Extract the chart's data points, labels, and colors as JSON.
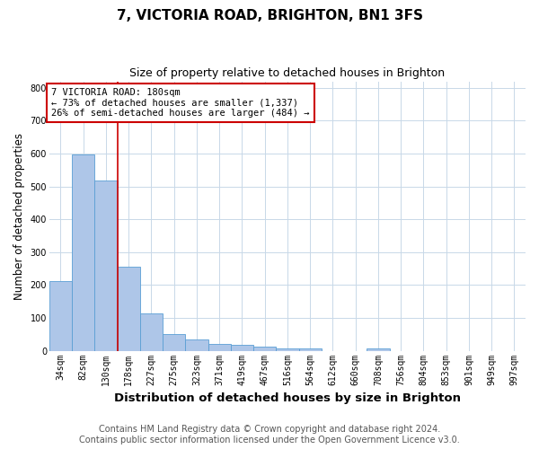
{
  "title": "7, VICTORIA ROAD, BRIGHTON, BN1 3FS",
  "subtitle": "Size of property relative to detached houses in Brighton",
  "xlabel": "Distribution of detached houses by size in Brighton",
  "ylabel": "Number of detached properties",
  "categories": [
    "34sqm",
    "82sqm",
    "130sqm",
    "178sqm",
    "227sqm",
    "275sqm",
    "323sqm",
    "371sqm",
    "419sqm",
    "467sqm",
    "516sqm",
    "564sqm",
    "612sqm",
    "660sqm",
    "708sqm",
    "756sqm",
    "804sqm",
    "853sqm",
    "901sqm",
    "949sqm",
    "997sqm"
  ],
  "values": [
    212,
    597,
    519,
    255,
    115,
    52,
    34,
    20,
    17,
    12,
    6,
    6,
    0,
    0,
    8,
    0,
    0,
    0,
    0,
    0,
    0
  ],
  "bar_color": "#aec6e8",
  "bar_edge_color": "#5a9fd4",
  "red_line_x": 2.5,
  "annotation_text": "7 VICTORIA ROAD: 180sqm\n← 73% of detached houses are smaller (1,337)\n26% of semi-detached houses are larger (484) →",
  "annotation_box_color": "#cc0000",
  "ylim": [
    0,
    820
  ],
  "yticks": [
    0,
    100,
    200,
    300,
    400,
    500,
    600,
    700,
    800
  ],
  "background_color": "#ffffff",
  "grid_color": "#c8d8e8",
  "footer_line1": "Contains HM Land Registry data © Crown copyright and database right 2024.",
  "footer_line2": "Contains public sector information licensed under the Open Government Licence v3.0.",
  "title_fontsize": 11,
  "subtitle_fontsize": 9,
  "xlabel_fontsize": 9.5,
  "ylabel_fontsize": 8.5,
  "tick_fontsize": 7,
  "annotation_fontsize": 7.5,
  "footer_fontsize": 7
}
